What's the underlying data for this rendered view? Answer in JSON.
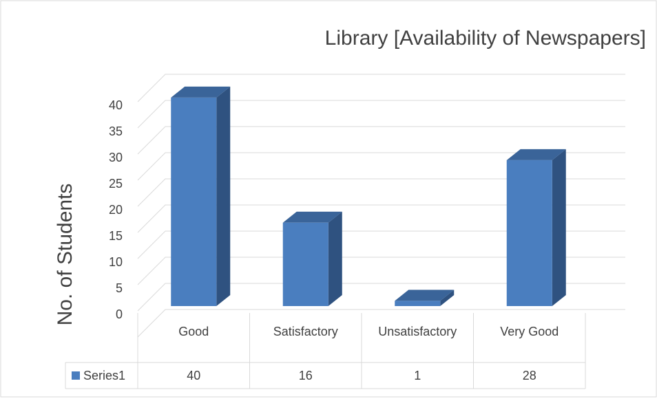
{
  "chart_data": {
    "type": "bar3d",
    "title": "Library [Availability of Newspapers]",
    "y_label": "No. of Students",
    "categories": [
      "Good",
      "Satisfactory",
      "Unsatisfactory",
      "Very Good"
    ],
    "series": [
      {
        "name": "Series1",
        "color": "#4a7ebf",
        "values": [
          40,
          16,
          1,
          28
        ]
      }
    ],
    "ylim": [
      0,
      45
    ],
    "yticks": [
      0,
      5,
      10,
      15,
      20,
      25,
      30,
      35,
      40
    ],
    "grid": true,
    "data_table": true
  }
}
